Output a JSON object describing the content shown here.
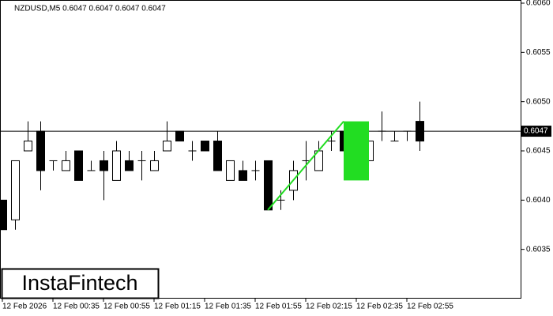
{
  "chart_data": {
    "type": "candlestick",
    "title": "NZDUSD,M5  0.6047 0.6047 0.6047 0.6047",
    "categories": [
      "12 Feb 2026",
      null,
      null,
      null,
      "12 Feb 00:35",
      null,
      null,
      null,
      "12 Feb 00:55",
      null,
      null,
      null,
      "12 Feb 01:15",
      null,
      null,
      null,
      "12 Feb 01:35",
      null,
      null,
      null,
      "12 Feb 01:55",
      null,
      null,
      null,
      "12 Feb 02:15",
      null,
      null,
      null,
      "12 Feb 02:35",
      null,
      null,
      null,
      "12 Feb 02:55",
      null
    ],
    "series": [
      {
        "up_color": "#ffffff",
        "down_color": "#000000",
        "open": [
          0.604,
          0.6038,
          0.6045,
          0.6047,
          0.6044,
          0.6043,
          0.6045,
          0.6043,
          0.6044,
          0.6042,
          0.6044,
          0.6044,
          0.6043,
          0.6045,
          0.6047,
          0.6045,
          0.6046,
          0.6046,
          0.6042,
          0.6043,
          0.6043,
          0.6044,
          0.604,
          0.6041,
          0.6044,
          0.6043,
          0.6046,
          0.6047,
          0.6046,
          0.6044,
          0.6047,
          0.6046,
          0.6047,
          0.6048
        ],
        "high": [
          0.604,
          0.6044,
          0.6048,
          0.6048,
          0.6044,
          0.6045,
          0.6045,
          0.6044,
          0.6045,
          0.6046,
          0.6045,
          0.6045,
          0.6045,
          0.6048,
          0.6047,
          0.6046,
          0.6046,
          0.6047,
          0.6044,
          0.6044,
          0.6044,
          0.6044,
          0.6041,
          0.6044,
          0.6046,
          0.6046,
          0.6047,
          0.6048,
          0.6046,
          0.6046,
          0.6049,
          0.6047,
          0.6047,
          0.605
        ],
        "low": [
          0.6037,
          0.6037,
          0.6045,
          0.6041,
          0.6043,
          0.6043,
          0.6042,
          0.6043,
          0.604,
          0.6042,
          0.6043,
          0.6042,
          0.6043,
          0.6045,
          0.6046,
          0.6044,
          0.6045,
          0.6043,
          0.6042,
          0.6042,
          0.6042,
          0.6039,
          0.6039,
          0.604,
          0.6042,
          0.6043,
          0.6045,
          0.6045,
          0.6044,
          0.6044,
          0.6046,
          0.6046,
          0.6046,
          0.6045
        ],
        "close": [
          0.6037,
          0.6044,
          0.6046,
          0.6043,
          0.6044,
          0.6044,
          0.6042,
          0.6043,
          0.6043,
          0.6045,
          0.6043,
          0.6044,
          0.6044,
          0.6046,
          0.6046,
          0.6045,
          0.6045,
          0.6043,
          0.6044,
          0.6042,
          0.6043,
          0.6039,
          0.604,
          0.6043,
          0.6044,
          0.6045,
          0.6046,
          0.6045,
          0.6045,
          0.6046,
          0.6047,
          0.6046,
          0.6047,
          0.6046
        ]
      }
    ],
    "ylim": [
      0.603,
      0.606
    ],
    "yticks": [
      0.6035,
      {
        "value": 0.604,
        "label": "0.6040"
      },
      0.6045,
      {
        "value": 0.605,
        "label": "0.6050"
      },
      0.6055,
      {
        "value": 0.606,
        "label": "0.6060"
      }
    ],
    "current_price": {
      "value": 0.6047,
      "label": "0.6047"
    },
    "pattern": {
      "color": "#22dd22",
      "line_x": [
        21,
        27
      ],
      "line_y": [
        0.6039,
        0.6048
      ],
      "box_x": [
        27,
        29
      ],
      "box_y": [
        0.6042,
        0.6048
      ]
    }
  },
  "logo": "InstaFintech"
}
